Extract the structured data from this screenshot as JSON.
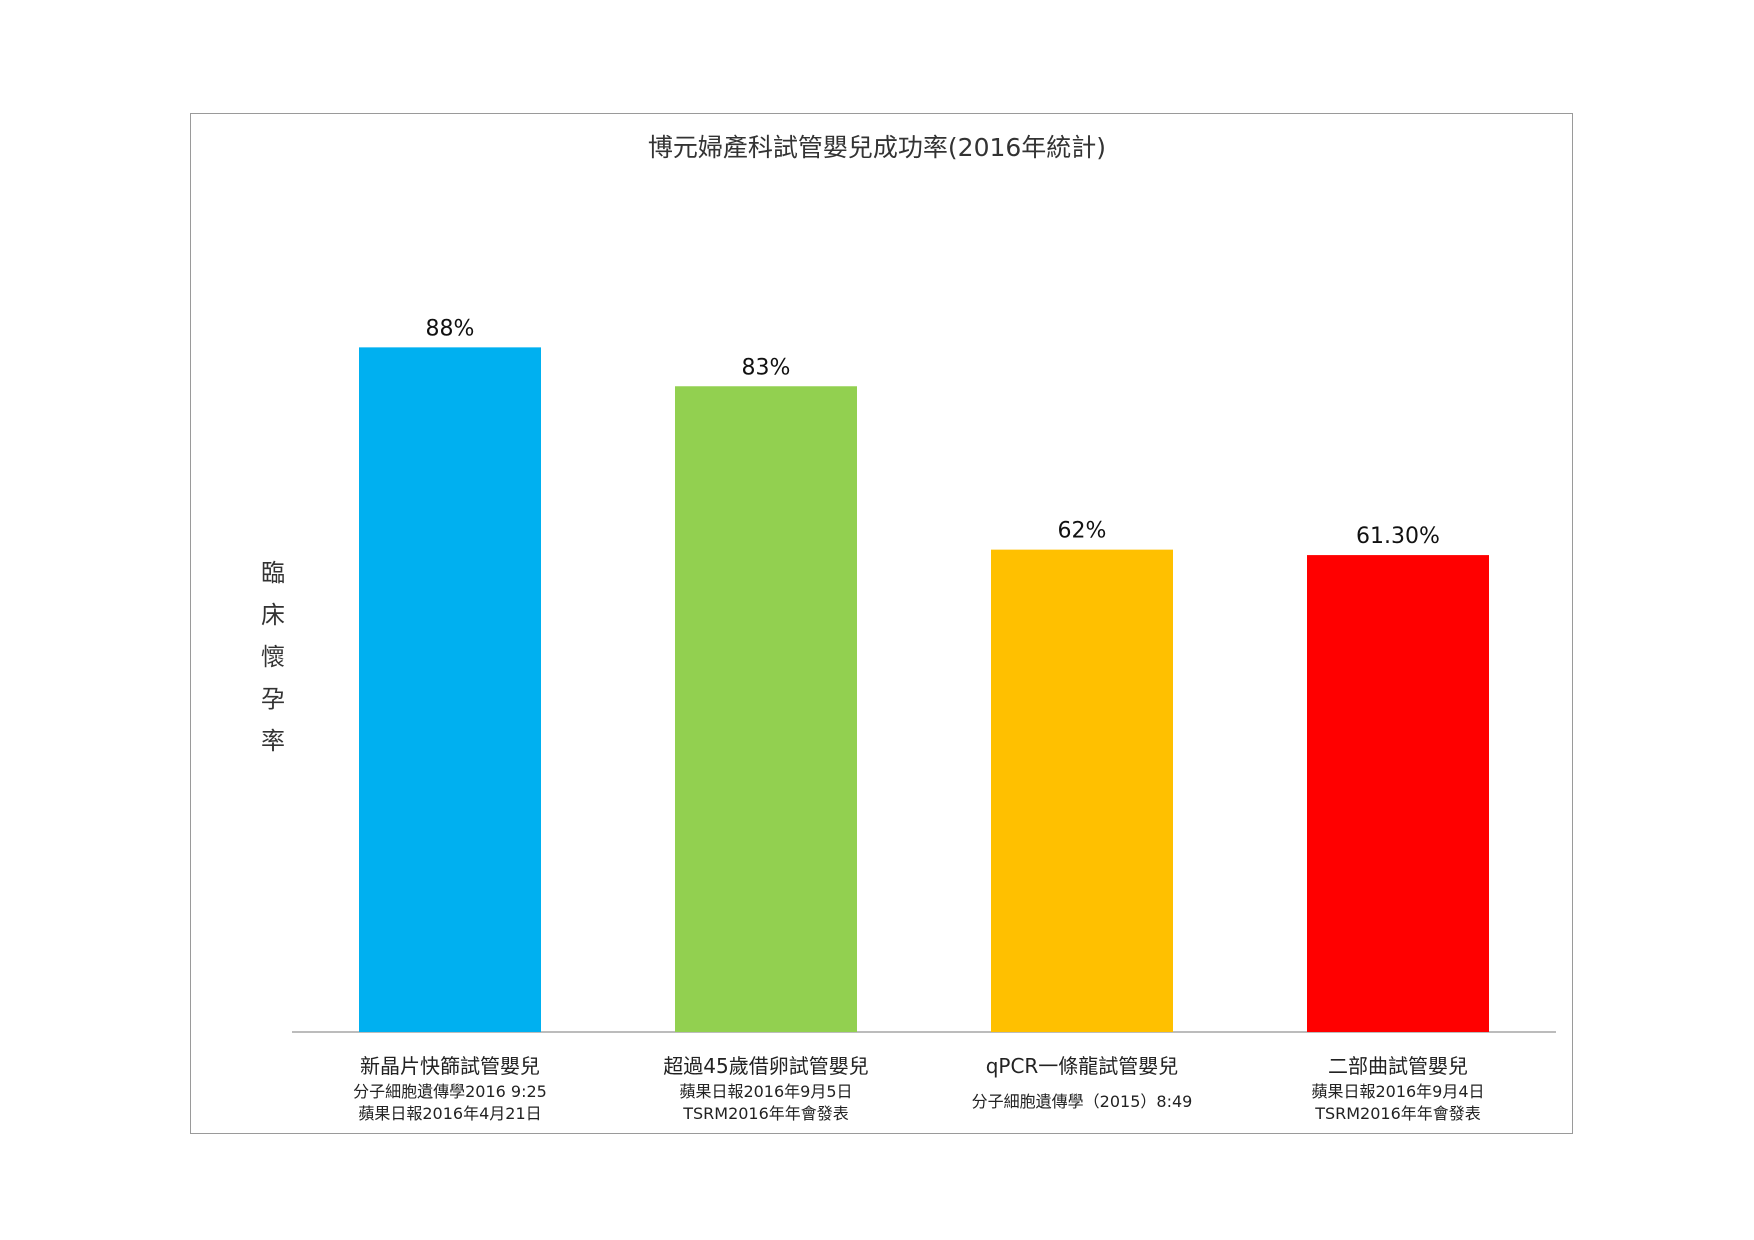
{
  "chart_data": {
    "type": "bar",
    "title": "博元婦產科試管嬰兒成功率(2016年統計)",
    "ylabel": "臨床懷孕率",
    "xlabel": "",
    "ylim": [
      0,
      100
    ],
    "grid": false,
    "categories": [
      {
        "name": "新晶片快篩試管嬰兒",
        "sources": [
          "分子細胞遺傳學2016 9:25",
          "蘋果日報2016年4月21日"
        ]
      },
      {
        "name": "超過45歲借卵試管嬰兒",
        "sources": [
          "蘋果日報2016年9月5日",
          "TSRM2016年年會發表"
        ]
      },
      {
        "name": "qPCR一條龍試管嬰兒",
        "sources": [
          "分子細胞遺傳學（2015）8:49"
        ]
      },
      {
        "name": "二部曲試管嬰兒",
        "sources": [
          "蘋果日報2016年9月4日",
          "TSRM2016年年會發表"
        ]
      }
    ],
    "values": [
      88,
      83,
      62,
      61.3
    ],
    "data_labels": [
      "88%",
      "83%",
      "62%",
      "61.30%"
    ],
    "colors": [
      "#00B0F0",
      "#92D050",
      "#FFC000",
      "#FF0000"
    ]
  }
}
